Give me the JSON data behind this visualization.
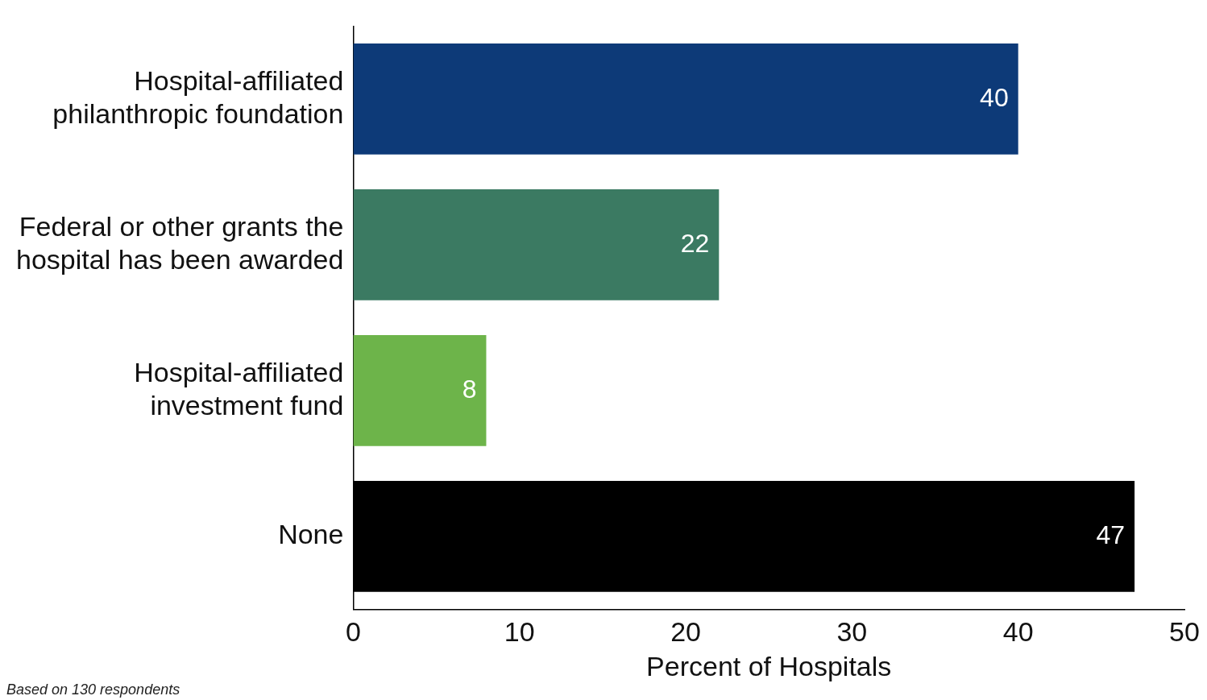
{
  "chart_data": {
    "type": "bar",
    "orientation": "horizontal",
    "categories": [
      "Hospital-affiliated philanthropic foundation",
      "Federal or other grants the hospital has been awarded",
      "Hospital-affiliated investment fund",
      "None"
    ],
    "values": [
      40,
      22,
      8,
      47
    ],
    "colors": [
      "#0d3a78",
      "#3b7a62",
      "#6db44a",
      "#000000"
    ],
    "xlim": [
      0,
      50
    ],
    "xticks": [
      0,
      10,
      20,
      30,
      40,
      50
    ],
    "xlabel": "Percent of Hospitals",
    "data_labels": true,
    "grid": false,
    "legend": false,
    "annotations": [
      "Based on 130 respondents"
    ]
  }
}
